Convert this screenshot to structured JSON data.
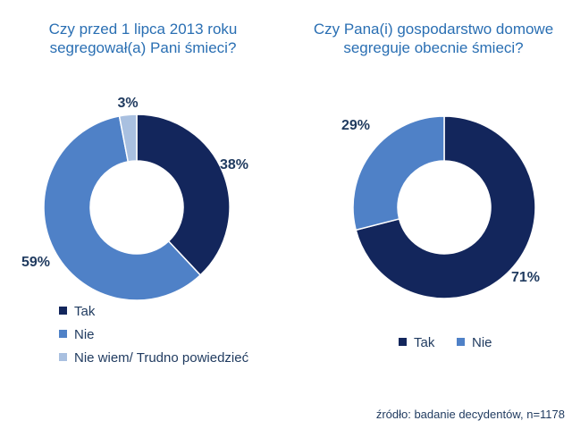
{
  "chart_data": [
    {
      "type": "pie",
      "title": "Czy przed 1 lipca 2013 roku\nsegregował(a) Pani śmieci?",
      "categories": [
        "Tak",
        "Nie",
        "Nie wiem/ Trudno powiedzieć"
      ],
      "values": [
        38,
        59,
        3
      ],
      "labels": [
        "38%",
        "59%",
        "3%"
      ],
      "colors": [
        "#13265c",
        "#4f81c7",
        "#a9c0e0"
      ],
      "legend": [
        "Tak",
        "Nie",
        "Nie wiem/ Trudno powiedzieć"
      ],
      "legend_position": "bottom-left"
    },
    {
      "type": "pie",
      "title": "Czy Pana(i) gospodarstwo domowe\nsegreguje obecnie śmieci?",
      "categories": [
        "Tak",
        "Nie"
      ],
      "values": [
        71,
        29
      ],
      "labels": [
        "71%",
        "29%"
      ],
      "colors": [
        "#13265c",
        "#4f81c7"
      ],
      "legend": [
        "Tak",
        "Nie"
      ],
      "legend_position": "bottom"
    }
  ],
  "source": "źródło: badanie decydentów, n=1178"
}
